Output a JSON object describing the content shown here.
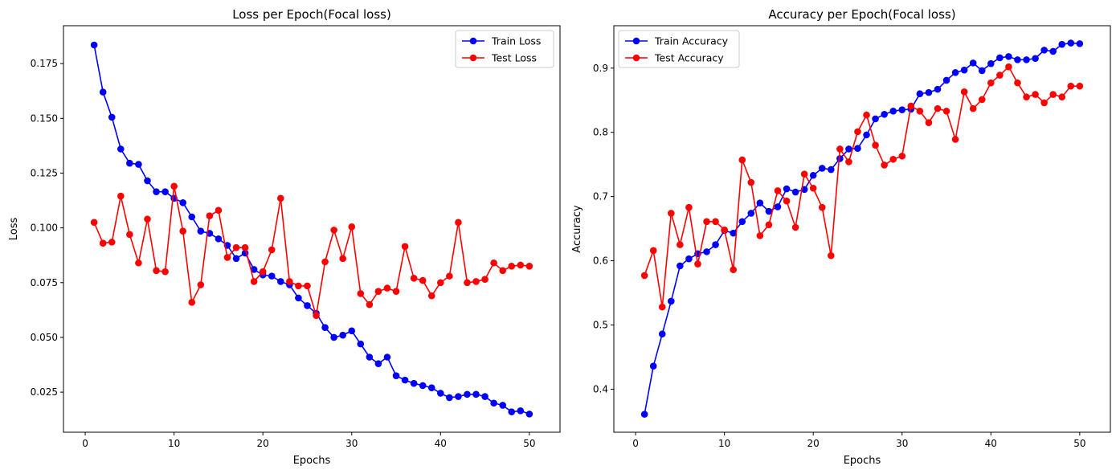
{
  "chart_data": [
    {
      "type": "line",
      "title": "Loss per Epoch(Focal loss)",
      "xlabel": "Epochs",
      "ylabel": "Loss",
      "xlim": [
        -2.45,
        53.45
      ],
      "ylim": [
        0.0067,
        0.1923
      ],
      "xticks": [
        0,
        10,
        20,
        30,
        40,
        50
      ],
      "xtick_labels": [
        "0",
        "10",
        "20",
        "30",
        "40",
        "50"
      ],
      "yticks": [
        0.025,
        0.05,
        0.075,
        0.1,
        0.125,
        0.15,
        0.175
      ],
      "ytick_labels": [
        "0.025",
        "0.050",
        "0.075",
        "0.100",
        "0.125",
        "0.150",
        "0.175"
      ],
      "grid": false,
      "legend_position": "upper right",
      "x": [
        1,
        2,
        3,
        4,
        5,
        6,
        7,
        8,
        9,
        10,
        11,
        12,
        13,
        14,
        15,
        16,
        17,
        18,
        19,
        20,
        21,
        22,
        23,
        24,
        25,
        26,
        27,
        28,
        29,
        30,
        31,
        32,
        33,
        34,
        35,
        36,
        37,
        38,
        39,
        40,
        41,
        42,
        43,
        44,
        45,
        46,
        47,
        48,
        49,
        50
      ],
      "series": [
        {
          "name": "Train Loss",
          "color": "#0000ff",
          "values": [
            0.1835,
            0.162,
            0.1505,
            0.136,
            0.1295,
            0.129,
            0.1215,
            0.1165,
            0.1165,
            0.1135,
            0.1115,
            0.105,
            0.0985,
            0.0975,
            0.095,
            0.092,
            0.086,
            0.0885,
            0.081,
            0.0785,
            0.078,
            0.0755,
            0.074,
            0.068,
            0.0645,
            0.061,
            0.0545,
            0.05,
            0.051,
            0.053,
            0.047,
            0.041,
            0.038,
            0.041,
            0.0325,
            0.0305,
            0.029,
            0.028,
            0.027,
            0.0245,
            0.0225,
            0.023,
            0.024,
            0.024,
            0.023,
            0.02,
            0.019,
            0.016,
            0.0165,
            0.015
          ]
        },
        {
          "name": "Test Loss",
          "color": "#ff0000",
          "values": [
            0.1025,
            0.093,
            0.0935,
            0.1145,
            0.097,
            0.084,
            0.104,
            0.0805,
            0.08,
            0.119,
            0.0985,
            0.066,
            0.074,
            0.1055,
            0.108,
            0.0865,
            0.091,
            0.091,
            0.0755,
            0.08,
            0.09,
            0.1135,
            0.0755,
            0.0735,
            0.0735,
            0.06,
            0.0845,
            0.099,
            0.086,
            0.1005,
            0.07,
            0.065,
            0.071,
            0.0725,
            0.071,
            0.0915,
            0.077,
            0.076,
            0.069,
            0.075,
            0.078,
            0.1025,
            0.075,
            0.0755,
            0.0765,
            0.084,
            0.0805,
            0.0825,
            0.083,
            0.0825
          ]
        }
      ]
    },
    {
      "type": "line",
      "title": "Accuracy per Epoch(Focal loss)",
      "xlabel": "Epochs",
      "ylabel": "Accuracy",
      "xlim": [
        -2.45,
        53.45
      ],
      "ylim": [
        0.333,
        0.966
      ],
      "xticks": [
        0,
        10,
        20,
        30,
        40,
        50
      ],
      "xtick_labels": [
        "0",
        "10",
        "20",
        "30",
        "40",
        "50"
      ],
      "yticks": [
        0.4,
        0.5,
        0.6,
        0.7,
        0.8,
        0.9
      ],
      "ytick_labels": [
        "0.4",
        "0.5",
        "0.6",
        "0.7",
        "0.8",
        "0.9"
      ],
      "grid": false,
      "legend_position": "upper left",
      "x": [
        1,
        2,
        3,
        4,
        5,
        6,
        7,
        8,
        9,
        10,
        11,
        12,
        13,
        14,
        15,
        16,
        17,
        18,
        19,
        20,
        21,
        22,
        23,
        24,
        25,
        26,
        27,
        28,
        29,
        30,
        31,
        32,
        33,
        34,
        35,
        36,
        37,
        38,
        39,
        40,
        41,
        42,
        43,
        44,
        45,
        46,
        47,
        48,
        49,
        50
      ],
      "series": [
        {
          "name": "Train Accuracy",
          "color": "#0000ff",
          "values": [
            0.361,
            0.436,
            0.486,
            0.537,
            0.592,
            0.603,
            0.611,
            0.614,
            0.625,
            0.647,
            0.643,
            0.661,
            0.674,
            0.69,
            0.677,
            0.684,
            0.712,
            0.707,
            0.711,
            0.733,
            0.744,
            0.742,
            0.759,
            0.774,
            0.775,
            0.796,
            0.821,
            0.828,
            0.833,
            0.835,
            0.836,
            0.86,
            0.862,
            0.867,
            0.881,
            0.893,
            0.897,
            0.908,
            0.896,
            0.907,
            0.916,
            0.918,
            0.913,
            0.913,
            0.915,
            0.928,
            0.926,
            0.937,
            0.939,
            0.938
          ]
        },
        {
          "name": "Test Accuracy",
          "color": "#ff0000",
          "values": [
            0.577,
            0.616,
            0.528,
            0.674,
            0.625,
            0.683,
            0.595,
            0.661,
            0.661,
            0.648,
            0.586,
            0.757,
            0.722,
            0.639,
            0.656,
            0.709,
            0.693,
            0.652,
            0.735,
            0.713,
            0.683,
            0.608,
            0.774,
            0.754,
            0.801,
            0.827,
            0.78,
            0.749,
            0.758,
            0.763,
            0.841,
            0.833,
            0.815,
            0.837,
            0.833,
            0.789,
            0.863,
            0.837,
            0.851,
            0.877,
            0.889,
            0.902,
            0.877,
            0.855,
            0.859,
            0.846,
            0.859,
            0.855,
            0.872,
            0.872
          ]
        }
      ]
    }
  ]
}
